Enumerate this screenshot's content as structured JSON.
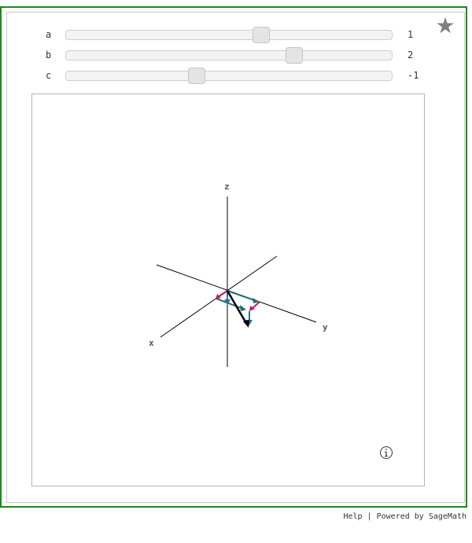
{
  "sliders": [
    {
      "label": "a",
      "value": "1",
      "position": 0.6
    },
    {
      "label": "b",
      "value": "2",
      "position": 0.7
    },
    {
      "label": "c",
      "value": "-1",
      "position": 0.4
    }
  ],
  "plot": {
    "axis_labels": {
      "x": "x",
      "y": "y",
      "z": "z"
    }
  },
  "footer": {
    "help": "Help",
    "separator": " | ",
    "powered": "Powered by SageMath"
  },
  "icons": {
    "favorite": "star-icon",
    "info": "info-icon"
  },
  "colors": {
    "frame": "#1a8a1a",
    "vector_magenta": "#c2185b",
    "vector_teal": "#1f6e6e",
    "vector_blue": "#2a6f97",
    "vector_black": "#000000"
  }
}
